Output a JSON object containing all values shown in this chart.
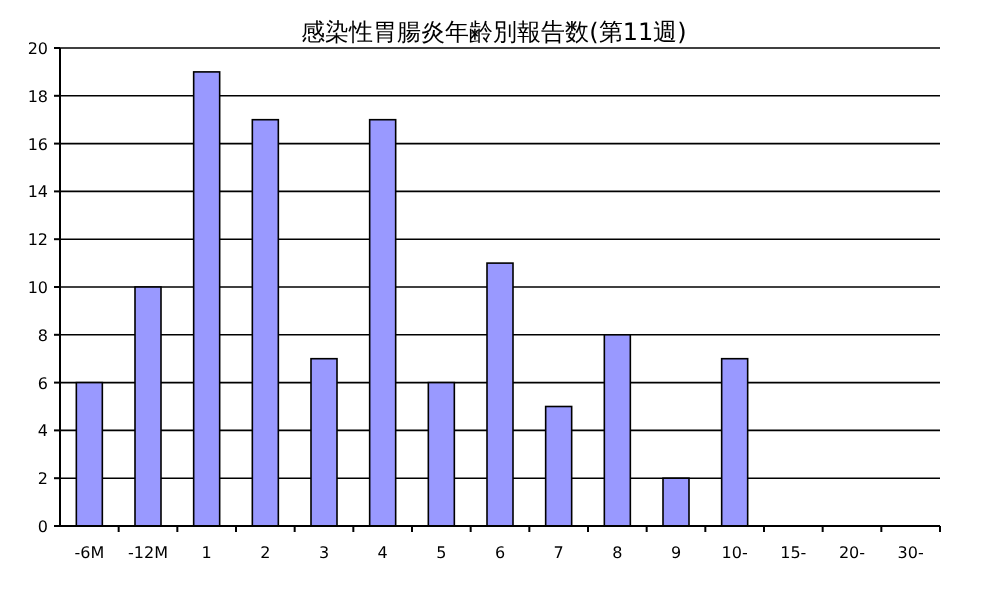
{
  "chart_data": {
    "type": "bar",
    "title": "感染性胃腸炎年齢別報告数(第11週)",
    "categories": [
      "-6M",
      "-12M",
      "1",
      "2",
      "3",
      "4",
      "5",
      "6",
      "7",
      "8",
      "9",
      "10-",
      "15-",
      "20-",
      "30-"
    ],
    "values": [
      6,
      10,
      19,
      17,
      7,
      17,
      6,
      11,
      5,
      8,
      2,
      7,
      0,
      0,
      0
    ],
    "color": "#9999ff",
    "ylim": [
      0,
      20
    ],
    "yticks": [
      0,
      2,
      4,
      6,
      8,
      10,
      12,
      14,
      16,
      18,
      20
    ],
    "grid": "y"
  }
}
